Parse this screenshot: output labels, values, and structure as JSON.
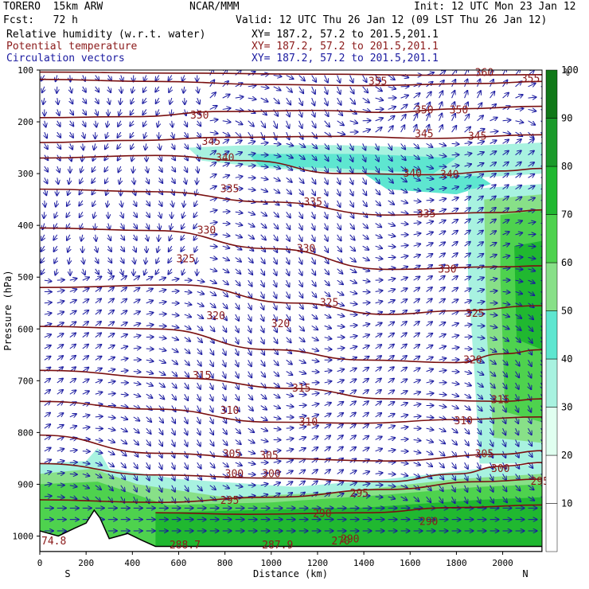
{
  "header": {
    "model": "TORERO  15km ARW",
    "org": "NCAR/MMM",
    "init": "Init: 12 UTC Mon 23 Jan 12",
    "fcst": "Fcst:   72 h",
    "valid": "Valid: 12 UTC Thu 26 Jan 12 (09 LST Thu 26 Jan 12)",
    "fields": [
      {
        "label": "Relative humidity (w.r.t. water)",
        "xy": "XY= 187.2, 57.2 to 201.5,201.1",
        "color": "#000000"
      },
      {
        "label": "Potential temperature",
        "xy": "XY= 187.2, 57.2 to 201.5,201.1",
        "color": "#8b1a1a"
      },
      {
        "label": "Circulation vectors",
        "xy": "XY= 187.2, 57.2 to 201.5,201.1",
        "color": "#1a1aa0"
      }
    ]
  },
  "chart_data": {
    "type": "cross-section",
    "title": "Relative humidity, potential temperature and circulation vectors",
    "xlabel": "Distance (km)",
    "ylabel": "Pressure (hPa)",
    "xlim": [
      0,
      2170
    ],
    "ylim": [
      100,
      1030
    ],
    "x_ticks": [
      0,
      200,
      400,
      600,
      800,
      1000,
      1200,
      1400,
      1600,
      1800,
      2000
    ],
    "y_ticks": [
      100,
      200,
      300,
      400,
      500,
      600,
      700,
      800,
      900,
      1000
    ],
    "x_end_labels": {
      "left": "S",
      "right": "N"
    },
    "colorbar": {
      "unit": "%",
      "levels": [
        10,
        20,
        30,
        40,
        50,
        60,
        70,
        80,
        90,
        100
      ],
      "colors": [
        "#ffffff",
        "#ffffff",
        "#e0fff0",
        "#a8f2e0",
        "#5ee6d0",
        "#88e088",
        "#4ed24e",
        "#20b830",
        "#1a9a2a",
        "#107818"
      ]
    },
    "theta_contours": [
      {
        "label": "360",
        "pts": [
          [
            0,
            104
          ],
          [
            600,
            106
          ],
          [
            1200,
            108
          ],
          [
            1700,
            110
          ],
          [
            2170,
            109
          ]
        ]
      },
      {
        "label": "355",
        "pts": [
          [
            0,
            118
          ],
          [
            500,
            122
          ],
          [
            1000,
            128
          ],
          [
            1400,
            130
          ],
          [
            1900,
            126
          ],
          [
            2170,
            122
          ]
        ]
      },
      {
        "label": "350",
        "pts": [
          [
            0,
            192
          ],
          [
            400,
            190
          ],
          [
            800,
            180
          ],
          [
            1200,
            178
          ],
          [
            1500,
            182
          ],
          [
            1800,
            175
          ],
          [
            2170,
            170
          ]
        ]
      },
      {
        "label": "345",
        "pts": [
          [
            0,
            240
          ],
          [
            400,
            236
          ],
          [
            800,
            230
          ],
          [
            1300,
            228
          ],
          [
            1700,
            232
          ],
          [
            2170,
            225
          ]
        ]
      },
      {
        "label": "340",
        "pts": [
          [
            0,
            270
          ],
          [
            500,
            265
          ],
          [
            900,
            275
          ],
          [
            1300,
            300
          ],
          [
            1700,
            302
          ],
          [
            2000,
            295
          ],
          [
            2170,
            290
          ]
        ]
      },
      {
        "label": "335",
        "pts": [
          [
            0,
            330
          ],
          [
            500,
            335
          ],
          [
            1000,
            355
          ],
          [
            1500,
            380
          ],
          [
            2000,
            375
          ],
          [
            2170,
            370
          ]
        ]
      },
      {
        "label": "330",
        "pts": [
          [
            0,
            405
          ],
          [
            500,
            410
          ],
          [
            1000,
            445
          ],
          [
            1500,
            485
          ],
          [
            2000,
            480
          ],
          [
            2170,
            478
          ]
        ]
      },
      {
        "label": "325",
        "pts": [
          [
            0,
            520
          ],
          [
            600,
            515
          ],
          [
            1100,
            550
          ],
          [
            1500,
            572
          ],
          [
            1800,
            565
          ],
          [
            2170,
            555
          ]
        ]
      },
      {
        "label": "320",
        "pts": [
          [
            0,
            595
          ],
          [
            500,
            600
          ],
          [
            1000,
            640
          ],
          [
            1400,
            660
          ],
          [
            1800,
            665
          ],
          [
            2000,
            648
          ],
          [
            2170,
            640
          ]
        ]
      },
      {
        "label": "315",
        "pts": [
          [
            0,
            680
          ],
          [
            600,
            695
          ],
          [
            1100,
            715
          ],
          [
            1500,
            735
          ],
          [
            2000,
            740
          ],
          [
            2170,
            735
          ]
        ]
      },
      {
        "label": "310",
        "pts": [
          [
            0,
            740
          ],
          [
            500,
            755
          ],
          [
            1000,
            780
          ],
          [
            1400,
            782
          ],
          [
            1800,
            775
          ],
          [
            2170,
            770
          ]
        ]
      },
      {
        "label": "305",
        "pts": [
          [
            0,
            805
          ],
          [
            500,
            840
          ],
          [
            1000,
            850
          ],
          [
            1500,
            855
          ],
          [
            2000,
            842
          ],
          [
            2170,
            835
          ]
        ]
      },
      {
        "label": "300",
        "pts": [
          [
            0,
            860
          ],
          [
            500,
            882
          ],
          [
            1000,
            888
          ],
          [
            1500,
            895
          ],
          [
            1800,
            880
          ],
          [
            2000,
            865
          ],
          [
            2170,
            858
          ]
        ]
      },
      {
        "label": "295",
        "pts": [
          [
            0,
            930
          ],
          [
            500,
            935
          ],
          [
            1000,
            925
          ],
          [
            1500,
            910
          ],
          [
            1900,
            895
          ],
          [
            2170,
            890
          ]
        ]
      },
      {
        "label": "290",
        "pts": [
          [
            500,
            955
          ],
          [
            900,
            958
          ],
          [
            1400,
            955
          ],
          [
            1800,
            945
          ],
          [
            2170,
            940
          ]
        ]
      }
    ],
    "theta_labels": [
      {
        "text": "360",
        "x": 1880,
        "p": 105
      },
      {
        "text": "355",
        "x": 2080,
        "p": 117
      },
      {
        "text": "355",
        "x": 1420,
        "p": 122
      },
      {
        "text": "350",
        "x": 650,
        "p": 188
      },
      {
        "text": "350",
        "x": 1620,
        "p": 178
      },
      {
        "text": "350",
        "x": 1770,
        "p": 178
      },
      {
        "text": "345",
        "x": 700,
        "p": 238
      },
      {
        "text": "345",
        "x": 1620,
        "p": 224
      },
      {
        "text": "345",
        "x": 1850,
        "p": 228
      },
      {
        "text": "340",
        "x": 760,
        "p": 270
      },
      {
        "text": "340",
        "x": 1570,
        "p": 300
      },
      {
        "text": "340",
        "x": 1730,
        "p": 302
      },
      {
        "text": "335",
        "x": 780,
        "p": 330
      },
      {
        "text": "335",
        "x": 1140,
        "p": 355
      },
      {
        "text": "335",
        "x": 1630,
        "p": 378
      },
      {
        "text": "330",
        "x": 680,
        "p": 410
      },
      {
        "text": "330",
        "x": 1110,
        "p": 445
      },
      {
        "text": "330",
        "x": 1720,
        "p": 485
      },
      {
        "text": "325",
        "x": 590,
        "p": 465
      },
      {
        "text": "325",
        "x": 1210,
        "p": 550
      },
      {
        "text": "325",
        "x": 1840,
        "p": 570
      },
      {
        "text": "320",
        "x": 720,
        "p": 575
      },
      {
        "text": "320",
        "x": 1000,
        "p": 590
      },
      {
        "text": "320",
        "x": 1830,
        "p": 660
      },
      {
        "text": "315",
        "x": 660,
        "p": 690
      },
      {
        "text": "315",
        "x": 1090,
        "p": 715
      },
      {
        "text": "315",
        "x": 1950,
        "p": 737
      },
      {
        "text": "310",
        "x": 780,
        "p": 758
      },
      {
        "text": "310",
        "x": 1120,
        "p": 780
      },
      {
        "text": "310",
        "x": 1790,
        "p": 778
      },
      {
        "text": "305",
        "x": 790,
        "p": 842
      },
      {
        "text": "305",
        "x": 950,
        "p": 845
      },
      {
        "text": "305",
        "x": 1880,
        "p": 842
      },
      {
        "text": "300",
        "x": 800,
        "p": 880
      },
      {
        "text": "300",
        "x": 960,
        "p": 880
      },
      {
        "text": "300",
        "x": 1950,
        "p": 870
      },
      {
        "text": "295",
        "x": 780,
        "p": 932
      },
      {
        "text": "295",
        "x": 1340,
        "p": 918
      },
      {
        "text": "295",
        "x": 2120,
        "p": 895
      },
      {
        "text": "290",
        "x": 1180,
        "p": 957
      },
      {
        "text": "290",
        "x": 1640,
        "p": 972
      },
      {
        "text": "290",
        "x": 1300,
        "p": 1006
      },
      {
        "text": "288.7",
        "x": 560,
        "p": 1018
      },
      {
        "text": "287.9",
        "x": 960,
        "p": 1018
      },
      {
        "text": "270",
        "x": 1260,
        "p": 1010
      },
      {
        "text": "74.8",
        "x": 0,
        "p": 1010
      }
    ],
    "terrain_pressure": [
      {
        "x": 0,
        "p": 990
      },
      {
        "x": 80,
        "p": 1000
      },
      {
        "x": 150,
        "p": 985
      },
      {
        "x": 200,
        "p": 975
      },
      {
        "x": 235,
        "p": 950
      },
      {
        "x": 260,
        "p": 965
      },
      {
        "x": 300,
        "p": 1005
      },
      {
        "x": 380,
        "p": 995
      },
      {
        "x": 440,
        "p": 1008
      },
      {
        "x": 500,
        "p": 1020
      },
      {
        "x": 600,
        "p": 1020
      },
      {
        "x": 1000,
        "p": 1020
      },
      {
        "x": 1600,
        "p": 1020
      },
      {
        "x": 2170,
        "p": 1020
      }
    ]
  }
}
